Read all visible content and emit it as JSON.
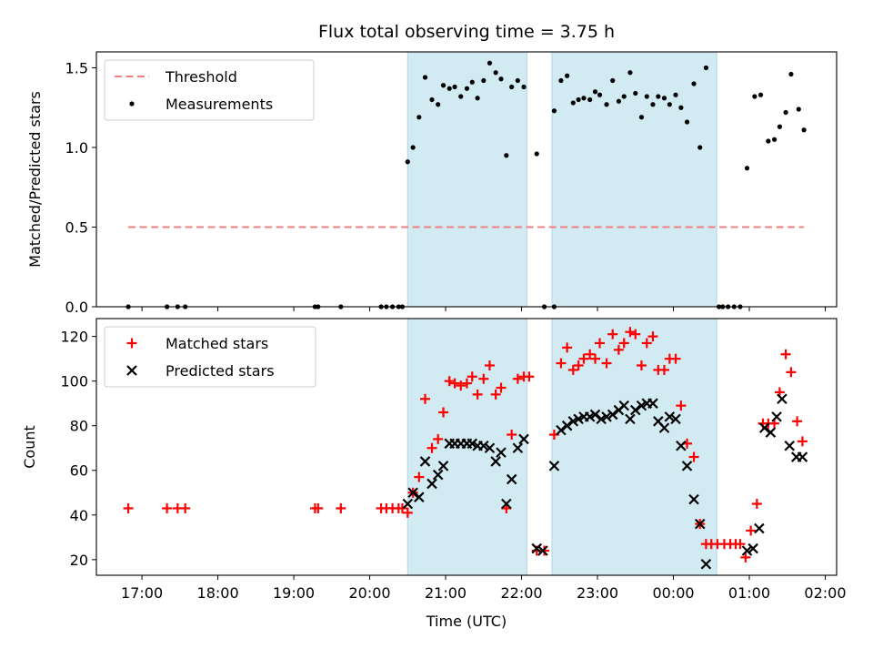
{
  "title": "Flux total observing time = 3.75 h",
  "colors": {
    "threshold": "#f08080",
    "measurement": "#000000",
    "matched": "#ff0000",
    "predicted": "#000000",
    "shade": "#add8e6"
  },
  "chart_data": [
    {
      "type": "scatter",
      "ylabel": "Matched/Predicted stars",
      "xlim": [
        16.4,
        26.15
      ],
      "ylim": [
        0,
        1.6
      ],
      "yticks": [
        0.0,
        0.5,
        1.0,
        1.5
      ],
      "ytick_labels": [
        "0.0",
        "0.5",
        "1.0",
        "1.5"
      ],
      "legend": {
        "position": "upper-left",
        "entries": [
          {
            "label": "Threshold",
            "marker": "dashed-line"
          },
          {
            "label": "Measurements",
            "marker": "dot"
          }
        ]
      },
      "shaded_intervals": [
        [
          20.5,
          22.07
        ],
        [
          22.4,
          24.57
        ]
      ],
      "threshold": {
        "value": 0.5,
        "x_range": [
          16.82,
          25.72
        ]
      },
      "series": [
        {
          "name": "Measurements",
          "marker": "dot",
          "points": [
            [
              16.82,
              0
            ],
            [
              17.33,
              0
            ],
            [
              17.47,
              0
            ],
            [
              17.57,
              0
            ],
            [
              19.28,
              0
            ],
            [
              19.32,
              0
            ],
            [
              19.62,
              0
            ],
            [
              20.15,
              0
            ],
            [
              20.22,
              0
            ],
            [
              20.3,
              0
            ],
            [
              20.38,
              0
            ],
            [
              20.43,
              0
            ],
            [
              20.5,
              0.91
            ],
            [
              20.57,
              1.0
            ],
            [
              20.65,
              1.19
            ],
            [
              20.73,
              1.44
            ],
            [
              20.82,
              1.3
            ],
            [
              20.9,
              1.27
            ],
            [
              20.97,
              1.39
            ],
            [
              21.05,
              1.37
            ],
            [
              21.12,
              1.38
            ],
            [
              21.2,
              1.32
            ],
            [
              21.28,
              1.37
            ],
            [
              21.35,
              1.41
            ],
            [
              21.42,
              1.31
            ],
            [
              21.5,
              1.42
            ],
            [
              21.58,
              1.53
            ],
            [
              21.66,
              1.47
            ],
            [
              21.73,
              1.43
            ],
            [
              21.8,
              0.95
            ],
            [
              21.87,
              1.38
            ],
            [
              21.95,
              1.42
            ],
            [
              22.03,
              1.38
            ],
            [
              22.2,
              0.96
            ],
            [
              22.3,
              0
            ],
            [
              22.43,
              0
            ],
            [
              22.43,
              1.23
            ],
            [
              22.52,
              1.42
            ],
            [
              22.6,
              1.45
            ],
            [
              22.68,
              1.28
            ],
            [
              22.75,
              1.3
            ],
            [
              22.82,
              1.31
            ],
            [
              22.9,
              1.3
            ],
            [
              22.97,
              1.35
            ],
            [
              23.03,
              1.33
            ],
            [
              23.12,
              1.27
            ],
            [
              23.2,
              1.42
            ],
            [
              23.28,
              1.29
            ],
            [
              23.35,
              1.32
            ],
            [
              23.43,
              1.47
            ],
            [
              23.5,
              1.34
            ],
            [
              23.58,
              1.19
            ],
            [
              23.65,
              1.32
            ],
            [
              23.73,
              1.27
            ],
            [
              23.8,
              1.32
            ],
            [
              23.88,
              1.31
            ],
            [
              23.95,
              1.27
            ],
            [
              24.03,
              1.33
            ],
            [
              24.1,
              1.25
            ],
            [
              24.18,
              1.16
            ],
            [
              24.27,
              1.4
            ],
            [
              24.35,
              1.0
            ],
            [
              24.43,
              1.5
            ],
            [
              24.6,
              0
            ],
            [
              24.65,
              0
            ],
            [
              24.72,
              0
            ],
            [
              24.8,
              0
            ],
            [
              24.88,
              0
            ],
            [
              24.97,
              0.87
            ],
            [
              25.07,
              1.32
            ],
            [
              25.15,
              1.33
            ],
            [
              25.25,
              1.04
            ],
            [
              25.33,
              1.05
            ],
            [
              25.4,
              1.13
            ],
            [
              25.48,
              1.22
            ],
            [
              25.55,
              1.46
            ],
            [
              25.65,
              1.24
            ],
            [
              25.72,
              1.11
            ]
          ]
        }
      ]
    },
    {
      "type": "scatter",
      "xlabel": "Time (UTC)",
      "ylabel": "Count",
      "xlim": [
        16.4,
        26.15
      ],
      "ylim": [
        13,
        128
      ],
      "yticks": [
        20,
        40,
        60,
        80,
        100,
        120
      ],
      "ytick_labels": [
        "20",
        "40",
        "60",
        "80",
        "100",
        "120"
      ],
      "xticks": [
        17,
        18,
        19,
        20,
        21,
        22,
        23,
        24,
        25,
        26
      ],
      "xtick_labels": [
        "17:00",
        "18:00",
        "19:00",
        "20:00",
        "21:00",
        "22:00",
        "23:00",
        "00:00",
        "01:00",
        "02:00"
      ],
      "legend": {
        "position": "upper-left",
        "entries": [
          {
            "label": "Matched stars",
            "marker": "plus"
          },
          {
            "label": "Predicted stars",
            "marker": "x"
          }
        ]
      },
      "shaded_intervals": [
        [
          20.5,
          22.07
        ],
        [
          22.4,
          24.57
        ]
      ],
      "series": [
        {
          "name": "Matched stars",
          "marker": "plus",
          "points": [
            [
              16.82,
              43
            ],
            [
              17.33,
              43
            ],
            [
              17.47,
              43
            ],
            [
              17.57,
              43
            ],
            [
              19.28,
              43
            ],
            [
              19.32,
              43
            ],
            [
              19.62,
              43
            ],
            [
              20.15,
              43
            ],
            [
              20.22,
              43
            ],
            [
              20.3,
              43
            ],
            [
              20.38,
              43
            ],
            [
              20.43,
              43
            ],
            [
              20.5,
              41
            ],
            [
              20.57,
              50
            ],
            [
              20.65,
              57
            ],
            [
              20.73,
              92
            ],
            [
              20.82,
              70
            ],
            [
              20.9,
              74
            ],
            [
              20.97,
              86
            ],
            [
              21.05,
              100
            ],
            [
              21.12,
              99
            ],
            [
              21.2,
              98
            ],
            [
              21.28,
              99
            ],
            [
              21.35,
              102
            ],
            [
              21.42,
              94
            ],
            [
              21.5,
              101
            ],
            [
              21.58,
              107
            ],
            [
              21.66,
              94
            ],
            [
              21.73,
              97
            ],
            [
              21.8,
              43
            ],
            [
              21.87,
              76
            ],
            [
              21.95,
              101
            ],
            [
              22.03,
              102
            ],
            [
              22.1,
              102
            ],
            [
              22.2,
              24
            ],
            [
              22.3,
              24
            ],
            [
              22.43,
              76
            ],
            [
              22.52,
              108
            ],
            [
              22.6,
              115
            ],
            [
              22.68,
              105
            ],
            [
              22.75,
              107
            ],
            [
              22.82,
              110
            ],
            [
              22.9,
              112
            ],
            [
              22.97,
              110
            ],
            [
              23.03,
              117
            ],
            [
              23.12,
              108
            ],
            [
              23.2,
              121
            ],
            [
              23.28,
              114
            ],
            [
              23.35,
              117
            ],
            [
              23.43,
              122
            ],
            [
              23.5,
              121
            ],
            [
              23.58,
              107
            ],
            [
              23.65,
              117
            ],
            [
              23.73,
              120
            ],
            [
              23.8,
              105
            ],
            [
              23.88,
              105
            ],
            [
              23.95,
              110
            ],
            [
              24.03,
              110
            ],
            [
              24.1,
              89
            ],
            [
              24.18,
              72
            ],
            [
              24.27,
              66
            ],
            [
              24.35,
              36
            ],
            [
              24.43,
              27
            ],
            [
              24.5,
              27
            ],
            [
              24.58,
              27
            ],
            [
              24.67,
              27
            ],
            [
              24.75,
              27
            ],
            [
              24.82,
              27
            ],
            [
              24.88,
              27
            ],
            [
              24.95,
              21
            ],
            [
              25.02,
              33
            ],
            [
              25.1,
              45
            ],
            [
              25.18,
              81
            ],
            [
              25.25,
              81
            ],
            [
              25.33,
              81
            ],
            [
              25.4,
              95
            ],
            [
              25.48,
              112
            ],
            [
              25.55,
              104
            ],
            [
              25.63,
              82
            ],
            [
              25.7,
              73
            ]
          ]
        },
        {
          "name": "Predicted stars",
          "marker": "x",
          "points": [
            [
              20.5,
              45
            ],
            [
              20.57,
              50
            ],
            [
              20.65,
              48
            ],
            [
              20.73,
              64
            ],
            [
              20.82,
              54
            ],
            [
              20.9,
              58
            ],
            [
              20.97,
              62
            ],
            [
              21.05,
              72
            ],
            [
              21.12,
              72
            ],
            [
              21.2,
              72
            ],
            [
              21.28,
              72
            ],
            [
              21.35,
              72
            ],
            [
              21.42,
              71
            ],
            [
              21.5,
              71
            ],
            [
              21.58,
              70
            ],
            [
              21.66,
              64
            ],
            [
              21.73,
              68
            ],
            [
              21.8,
              45
            ],
            [
              21.87,
              56
            ],
            [
              21.95,
              70
            ],
            [
              22.03,
              74
            ],
            [
              22.2,
              25
            ],
            [
              22.28,
              24
            ],
            [
              22.43,
              62
            ],
            [
              22.52,
              78
            ],
            [
              22.6,
              80
            ],
            [
              22.68,
              82
            ],
            [
              22.75,
              83
            ],
            [
              22.82,
              84
            ],
            [
              22.9,
              84
            ],
            [
              22.97,
              85
            ],
            [
              23.05,
              83
            ],
            [
              23.12,
              84
            ],
            [
              23.2,
              85
            ],
            [
              23.28,
              87
            ],
            [
              23.35,
              89
            ],
            [
              23.43,
              83
            ],
            [
              23.5,
              87
            ],
            [
              23.58,
              89
            ],
            [
              23.65,
              90
            ],
            [
              23.73,
              90
            ],
            [
              23.8,
              82
            ],
            [
              23.88,
              79
            ],
            [
              23.95,
              84
            ],
            [
              24.03,
              83
            ],
            [
              24.1,
              71
            ],
            [
              24.18,
              62
            ],
            [
              24.27,
              47
            ],
            [
              24.35,
              36
            ],
            [
              24.43,
              18
            ],
            [
              24.97,
              24
            ],
            [
              25.05,
              25
            ],
            [
              25.13,
              34
            ],
            [
              25.2,
              79
            ],
            [
              25.28,
              77
            ],
            [
              25.36,
              84
            ],
            [
              25.43,
              92
            ],
            [
              25.53,
              71
            ],
            [
              25.62,
              66
            ],
            [
              25.7,
              66
            ]
          ]
        }
      ]
    }
  ]
}
